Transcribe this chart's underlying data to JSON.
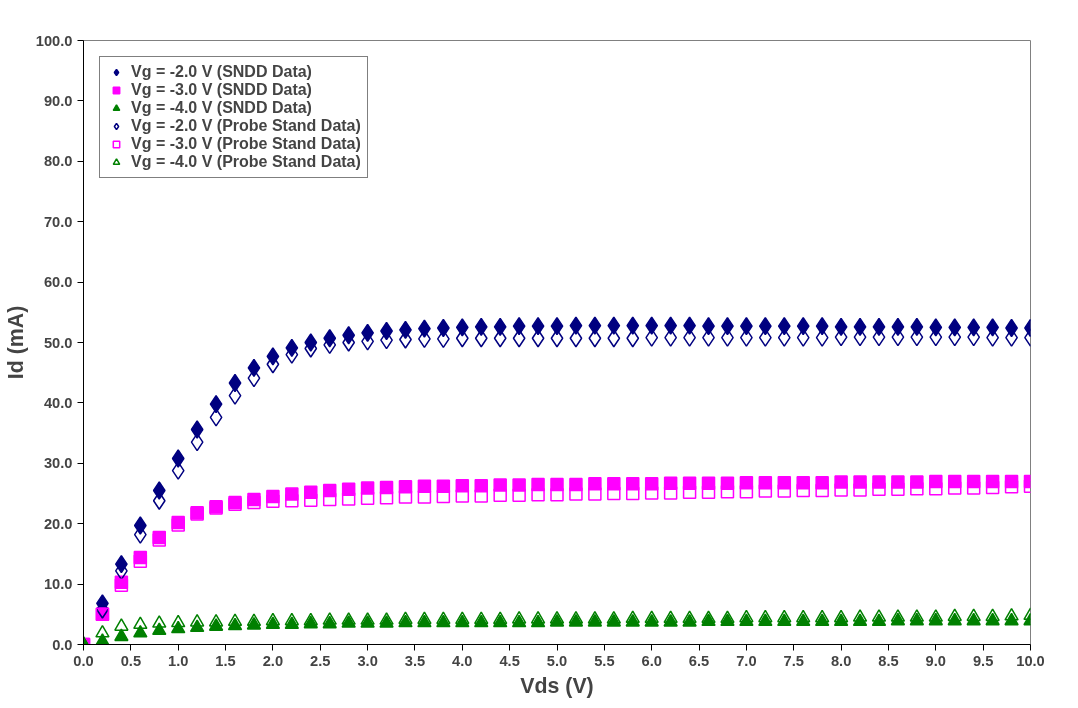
{
  "chart_data": {
    "type": "scatter",
    "xlabel": "Vds (V)",
    "ylabel": "Id (mA)",
    "x": [
      0,
      0.2,
      0.4,
      0.6,
      0.8,
      1.0,
      1.2,
      1.4,
      1.6,
      1.8,
      2.0,
      2.2,
      2.4,
      2.6,
      2.8,
      3.0,
      3.2,
      3.4,
      3.6,
      3.8,
      4.0,
      4.2,
      4.4,
      4.6,
      4.8,
      5.0,
      5.2,
      5.4,
      5.6,
      5.8,
      6.0,
      6.2,
      6.4,
      6.6,
      6.8,
      7.0,
      7.2,
      7.4,
      7.6,
      7.8,
      8.0,
      8.2,
      8.4,
      8.6,
      8.8,
      9.0,
      9.2,
      9.4,
      9.6,
      9.8,
      10.0
    ],
    "series": [
      {
        "name": "Vg = -2.0 V (SNDD Data)",
        "color": "#000080",
        "marker": "diamond",
        "values": [
          null,
          6.8,
          13.3,
          19.7,
          25.5,
          30.8,
          35.6,
          39.8,
          43.3,
          45.8,
          47.7,
          49.1,
          50.0,
          50.7,
          51.2,
          51.6,
          51.9,
          52.1,
          52.3,
          52.4,
          52.5,
          52.6,
          52.6,
          52.7,
          52.7,
          52.7,
          52.8,
          52.8,
          52.8,
          52.8,
          52.8,
          52.8,
          52.8,
          52.7,
          52.7,
          52.7,
          52.7,
          52.7,
          52.7,
          52.7,
          52.6,
          52.6,
          52.6,
          52.6,
          52.6,
          52.5,
          52.5,
          52.5,
          52.5,
          52.4,
          52.4
        ]
      },
      {
        "name": "Vg = -3.0 V (SNDD Data)",
        "color": "#ff00ff",
        "marker": "square",
        "values": [
          0,
          5.0,
          10.3,
          14.4,
          17.7,
          20.2,
          21.8,
          22.8,
          23.5,
          24.0,
          24.5,
          24.9,
          25.2,
          25.5,
          25.7,
          25.9,
          26.0,
          26.1,
          26.2,
          26.2,
          26.3,
          26.3,
          26.4,
          26.4,
          26.5,
          26.5,
          26.5,
          26.6,
          26.6,
          26.6,
          26.6,
          26.7,
          26.7,
          26.7,
          26.7,
          26.8,
          26.8,
          26.8,
          26.8,
          26.8,
          26.9,
          26.9,
          26.9,
          26.9,
          26.9,
          27.0,
          27.0,
          27.0,
          27.0,
          27.0,
          27.0
        ]
      },
      {
        "name": "Vg = -4.0 V (SNDD Data)",
        "color": "#008000",
        "marker": "triangle",
        "values": [
          0,
          0.5,
          1.3,
          1.9,
          2.3,
          2.6,
          2.8,
          3.0,
          3.1,
          3.2,
          3.3,
          3.3,
          3.4,
          3.4,
          3.5,
          3.5,
          3.5,
          3.6,
          3.6,
          3.6,
          3.6,
          3.6,
          3.6,
          3.6,
          3.6,
          3.7,
          3.7,
          3.7,
          3.7,
          3.7,
          3.7,
          3.7,
          3.7,
          3.8,
          3.8,
          3.8,
          3.8,
          3.8,
          3.8,
          3.8,
          3.8,
          3.8,
          3.8,
          3.9,
          3.9,
          3.9,
          3.9,
          3.9,
          3.9,
          3.9,
          3.9
        ]
      },
      {
        "name": "Vg = -2.0 V (Probe Stand Data)",
        "color": "#000080",
        "marker": "diamond-open",
        "values": [
          null,
          5.8,
          12.2,
          18.2,
          23.8,
          28.8,
          33.5,
          37.6,
          41.2,
          44.1,
          46.4,
          48.0,
          49.0,
          49.6,
          50.0,
          50.2,
          50.4,
          50.5,
          50.6,
          50.6,
          50.7,
          50.7,
          50.7,
          50.7,
          50.7,
          50.7,
          50.7,
          50.7,
          50.7,
          50.7,
          50.8,
          50.8,
          50.8,
          50.8,
          50.8,
          50.8,
          50.8,
          50.8,
          50.8,
          50.8,
          50.9,
          50.9,
          50.9,
          50.9,
          50.9,
          50.9,
          50.9,
          50.9,
          50.8,
          50.8,
          50.8
        ]
      },
      {
        "name": "Vg = -3.0 V (Probe Stand Data)",
        "color": "#ff00ff",
        "marker": "square-open",
        "values": [
          0,
          5.0,
          9.8,
          13.8,
          17.3,
          19.8,
          21.6,
          22.6,
          23.2,
          23.5,
          23.7,
          23.8,
          23.9,
          24.0,
          24.1,
          24.2,
          24.3,
          24.4,
          24.4,
          24.5,
          24.6,
          24.6,
          24.7,
          24.7,
          24.8,
          24.8,
          24.9,
          24.9,
          25.0,
          25.0,
          25.1,
          25.1,
          25.2,
          25.2,
          25.3,
          25.3,
          25.4,
          25.4,
          25.5,
          25.5,
          25.6,
          25.6,
          25.7,
          25.7,
          25.8,
          25.8,
          25.9,
          25.9,
          26.0,
          26.1,
          26.2
        ]
      },
      {
        "name": "Vg = -4.0 V (Probe Stand Data)",
        "color": "#008000",
        "marker": "triangle-open",
        "values": [
          0,
          1.9,
          3.0,
          3.3,
          3.5,
          3.6,
          3.7,
          3.7,
          3.8,
          3.8,
          3.9,
          3.9,
          3.9,
          4.0,
          4.0,
          4.0,
          4.0,
          4.1,
          4.1,
          4.1,
          4.1,
          4.1,
          4.1,
          4.2,
          4.2,
          4.2,
          4.2,
          4.2,
          4.2,
          4.3,
          4.3,
          4.3,
          4.3,
          4.3,
          4.3,
          4.4,
          4.4,
          4.4,
          4.4,
          4.4,
          4.4,
          4.5,
          4.5,
          4.5,
          4.5,
          4.5,
          4.6,
          4.6,
          4.6,
          4.7,
          4.8
        ]
      }
    ],
    "xlim": [
      0,
      10
    ],
    "ylim": [
      0,
      100
    ],
    "xticks": [
      {
        "value": 0,
        "label": "0.0"
      },
      {
        "value": 0.5,
        "label": "0.5"
      },
      {
        "value": 1,
        "label": "1.0"
      },
      {
        "value": 1.5,
        "label": "1.5"
      },
      {
        "value": 2,
        "label": "2.0"
      },
      {
        "value": 2.5,
        "label": "2.5"
      },
      {
        "value": 3,
        "label": "3.0"
      },
      {
        "value": 3.5,
        "label": "3.5"
      },
      {
        "value": 4,
        "label": "4.0"
      },
      {
        "value": 4.5,
        "label": "4.5"
      },
      {
        "value": 5,
        "label": "5.0"
      },
      {
        "value": 5.5,
        "label": "5.5"
      },
      {
        "value": 6,
        "label": "6.0"
      },
      {
        "value": 6.5,
        "label": "6.5"
      },
      {
        "value": 7,
        "label": "7.0"
      },
      {
        "value": 7.5,
        "label": "7.5"
      },
      {
        "value": 8,
        "label": "8.0"
      },
      {
        "value": 8.5,
        "label": "8.5"
      },
      {
        "value": 9,
        "label": "9.0"
      },
      {
        "value": 9.5,
        "label": "9.5"
      },
      {
        "value": 10,
        "label": "10.0"
      }
    ],
    "yticks": [
      {
        "value": 0,
        "label": "0.0"
      },
      {
        "value": 10,
        "label": "10.0"
      },
      {
        "value": 20,
        "label": "20.0"
      },
      {
        "value": 30,
        "label": "30.0"
      },
      {
        "value": 40,
        "label": "40.0"
      },
      {
        "value": 50,
        "label": "50.0"
      },
      {
        "value": 60,
        "label": "60.0"
      },
      {
        "value": 70,
        "label": "70.0"
      },
      {
        "value": 80,
        "label": "80.0"
      },
      {
        "value": 90,
        "label": "90.0"
      },
      {
        "value": 100,
        "label": "100.0"
      }
    ],
    "grid": false,
    "legend": "top left"
  }
}
